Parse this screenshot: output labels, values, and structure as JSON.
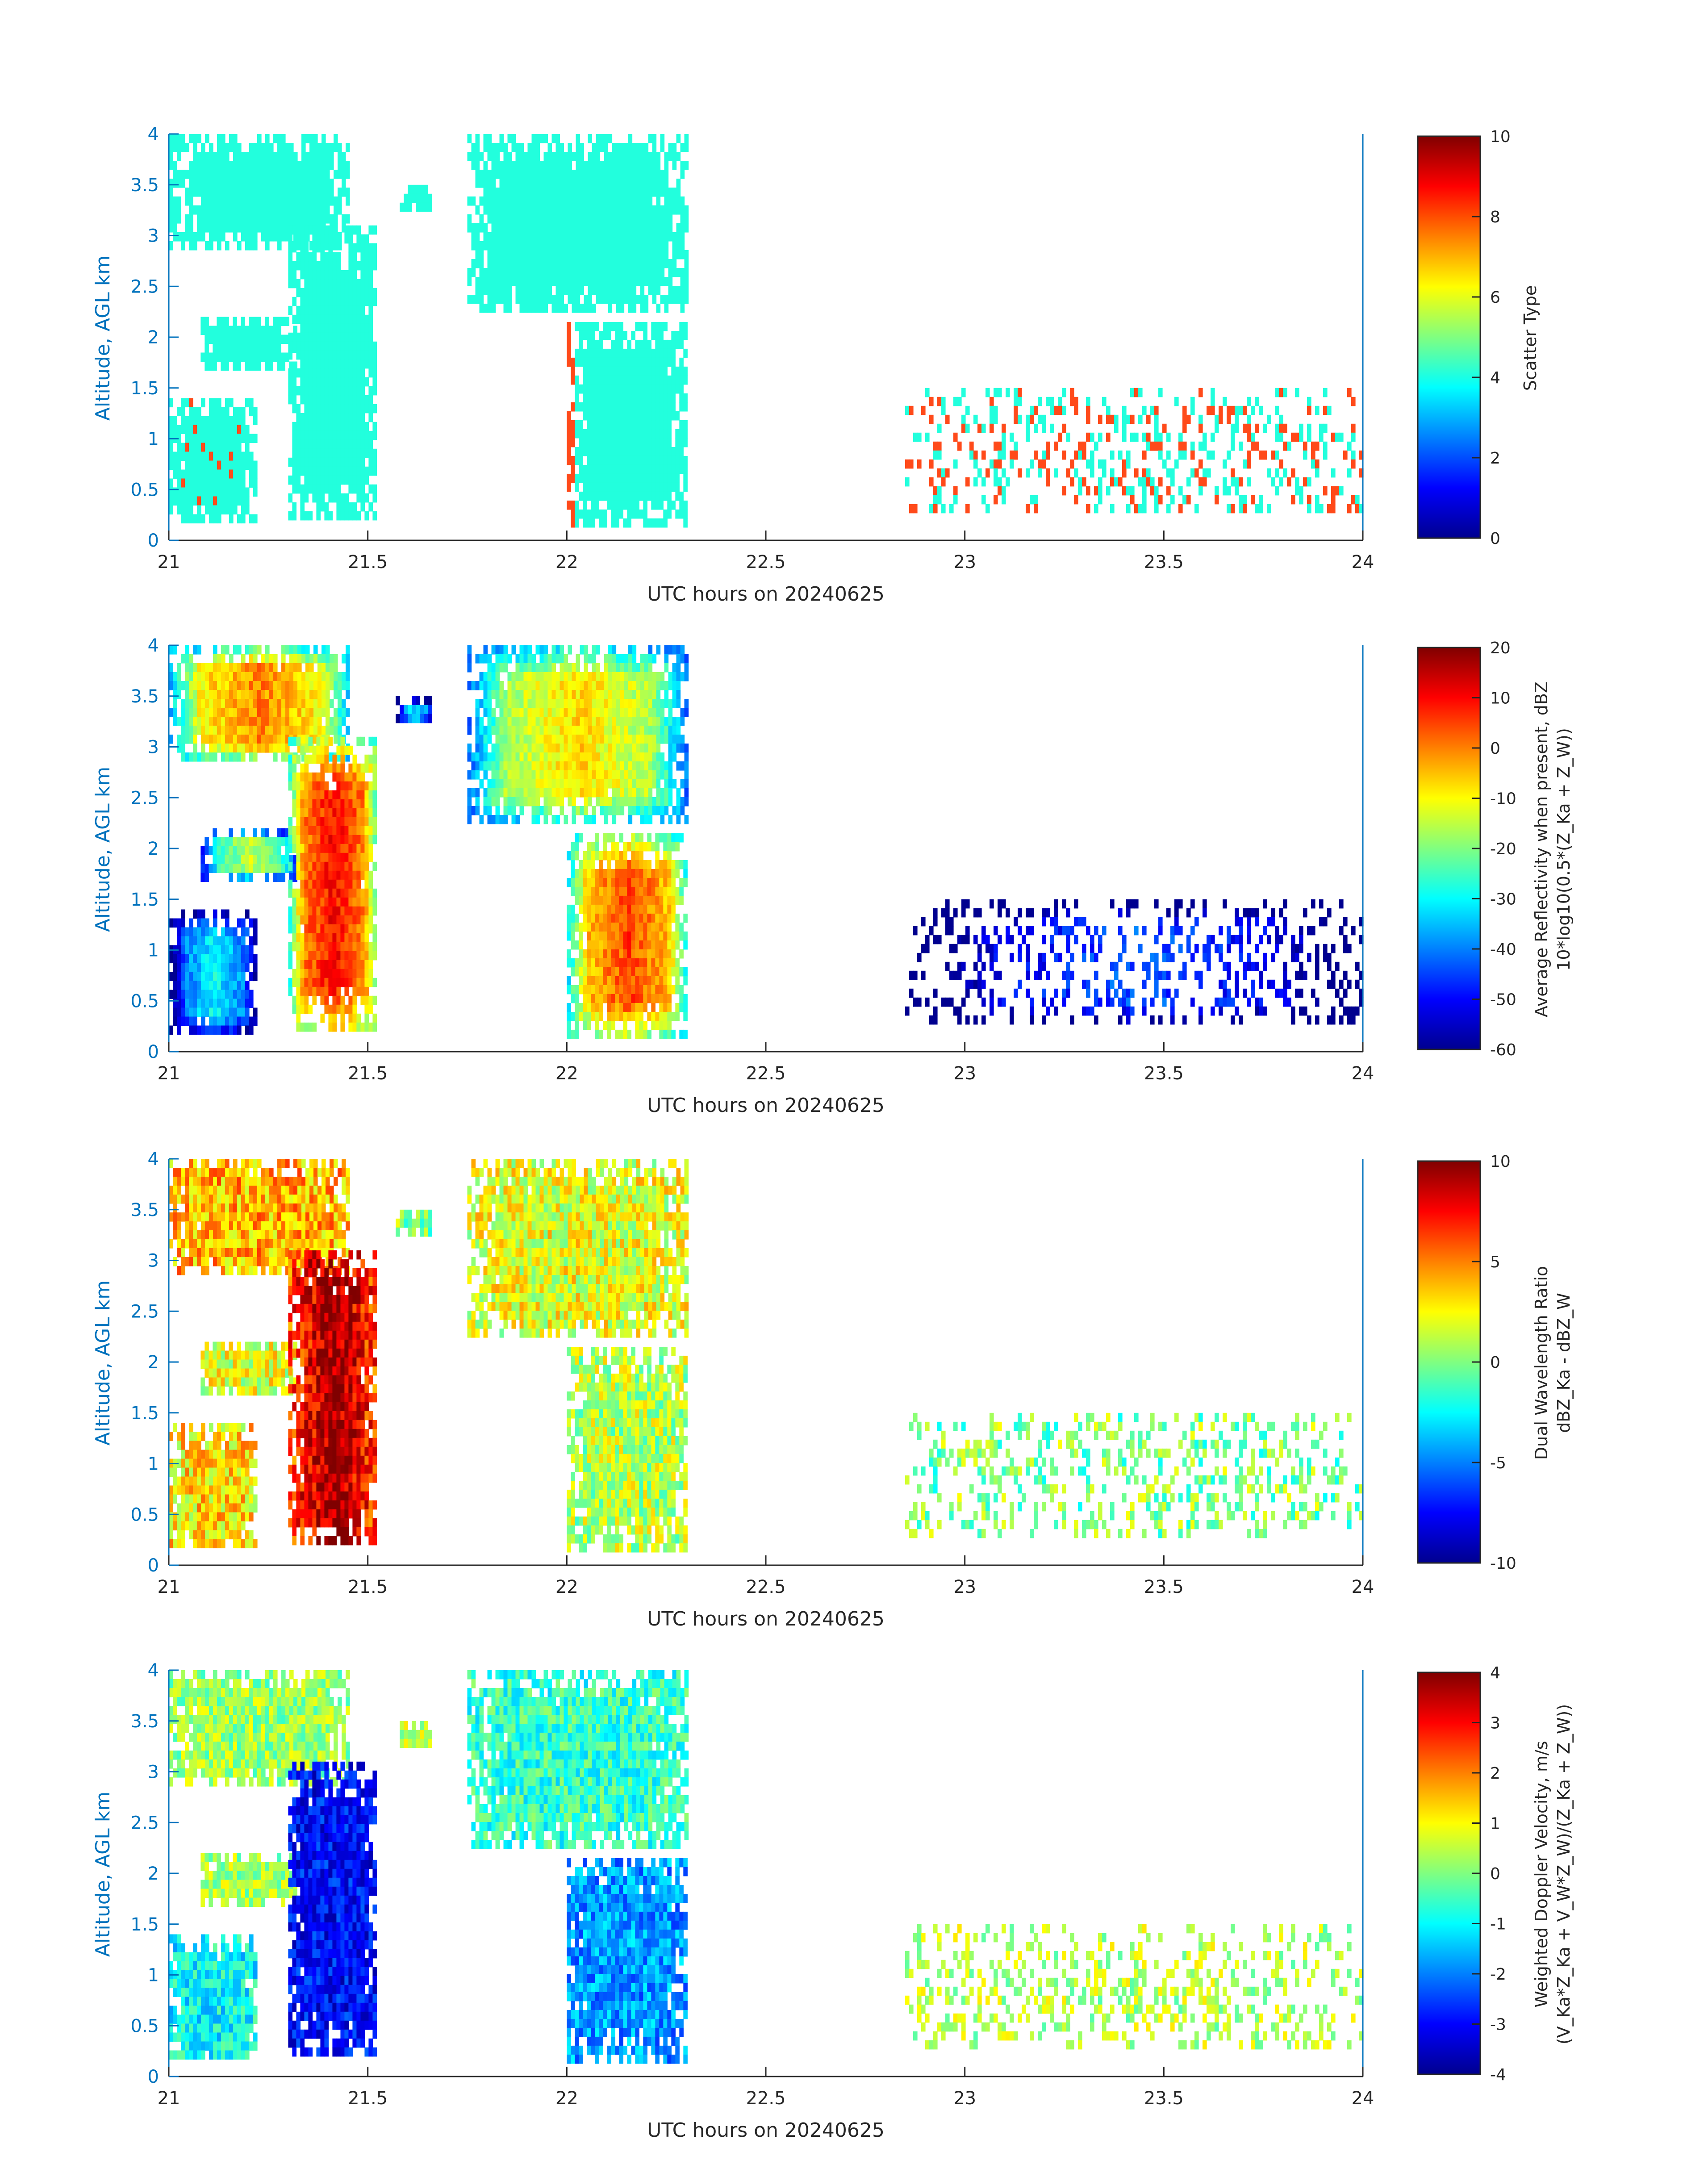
{
  "colors": {
    "axis_left": "#0072BD",
    "axis_text": "#262626",
    "scatter_cyan": "#22FFDD",
    "scatter_orange": "#FF4A1A",
    "jet": [
      "#00008F",
      "#0000FF",
      "#0080FF",
      "#00FFFF",
      "#80FF80",
      "#FFFF00",
      "#FF8000",
      "#FF0000",
      "#800000"
    ]
  },
  "chart_data": [
    {
      "type": "heatmap",
      "xlabel": "UTC hours on 20240625",
      "ylabel": "Altitude, AGL km",
      "xlim": [
        21,
        24
      ],
      "ylim": [
        0,
        4
      ],
      "xticks": [
        "21",
        "21.5",
        "22",
        "22.5",
        "23",
        "23.5",
        "24"
      ],
      "yticks": [
        "0",
        "0.5",
        "1",
        "1.5",
        "2",
        "2.5",
        "3",
        "3.5",
        "4"
      ],
      "colorbar": {
        "label_lines": [
          "Scatter Type"
        ],
        "ticks": [
          "0",
          "2",
          "4",
          "6",
          "8",
          "10"
        ],
        "range": [
          0,
          10
        ]
      },
      "field": "scatter"
    },
    {
      "type": "heatmap",
      "xlabel": "UTC hours on 20240625",
      "ylabel": "Altitude, AGL km",
      "xlim": [
        21,
        24
      ],
      "ylim": [
        0,
        4
      ],
      "xticks": [
        "21",
        "21.5",
        "22",
        "22.5",
        "23",
        "23.5",
        "24"
      ],
      "yticks": [
        "0",
        "0.5",
        "1",
        "1.5",
        "2",
        "2.5",
        "3",
        "3.5",
        "4"
      ],
      "colorbar": {
        "label_lines": [
          "Average Reflectivity when present, dBZ",
          "10*log10(0.5*(Z_Ka + Z_W))"
        ],
        "ticks": [
          "-60",
          "-50",
          "-40",
          "-30",
          "-20",
          "-10",
          "0",
          "10",
          "20"
        ],
        "range": [
          -60,
          20
        ]
      },
      "field": "reflectivity"
    },
    {
      "type": "heatmap",
      "xlabel": "UTC hours on 20240625",
      "ylabel": "Altitude, AGL km",
      "xlim": [
        21,
        24
      ],
      "ylim": [
        0,
        4
      ],
      "xticks": [
        "21",
        "21.5",
        "22",
        "22.5",
        "23",
        "23.5",
        "24"
      ],
      "yticks": [
        "0",
        "0.5",
        "1",
        "1.5",
        "2",
        "2.5",
        "3",
        "3.5",
        "4"
      ],
      "colorbar": {
        "label_lines": [
          "Dual Wavelength Ratio",
          "dBZ_Ka - dBZ_W"
        ],
        "ticks": [
          "-10",
          "-5",
          "0",
          "5",
          "10"
        ],
        "range": [
          -10,
          10
        ]
      },
      "field": "dwr"
    },
    {
      "type": "heatmap",
      "xlabel": "UTC hours on 20240625",
      "ylabel": "Altitude, AGL km",
      "xlim": [
        21,
        24
      ],
      "ylim": [
        0,
        4
      ],
      "xticks": [
        "21",
        "21.5",
        "22",
        "22.5",
        "23",
        "23.5",
        "24"
      ],
      "yticks": [
        "0",
        "0.5",
        "1",
        "1.5",
        "2",
        "2.5",
        "3",
        "3.5",
        "4"
      ],
      "colorbar": {
        "label_lines": [
          "Weighted Doppler Velocity, m/s",
          "(V_Ka*Z_Ka + V_W*Z_W)/(Z_Ka + Z_W))"
        ],
        "ticks": [
          "-4",
          "-3",
          "-2",
          "-1",
          "0",
          "1",
          "2",
          "3",
          "4"
        ],
        "range": [
          -4,
          4
        ]
      },
      "field": "velocity"
    }
  ],
  "regions": [
    {
      "name": "upper-cloud-a",
      "x0": 21.0,
      "x1": 21.45,
      "y0": 2.9,
      "y1": 4.0,
      "scatter": 4,
      "refl": -15,
      "dwr": 4,
      "vel": 0.2
    },
    {
      "name": "upper-cloud-b",
      "x0": 21.75,
      "x1": 22.3,
      "y0": 2.3,
      "y1": 4.0,
      "scatter": 4,
      "refl": -22,
      "dwr": 2,
      "vel": -0.6
    },
    {
      "name": "small-patch-3.4",
      "x0": 21.57,
      "x1": 21.66,
      "y0": 3.3,
      "y1": 3.5,
      "scatter": 4,
      "refl": -45,
      "dwr": 0,
      "vel": 0.5
    },
    {
      "name": "mid-layer-2km",
      "x0": 21.08,
      "x1": 21.32,
      "y0": 1.75,
      "y1": 2.2,
      "scatter": 4,
      "refl": -30,
      "dwr": 2,
      "vel": 0.3
    },
    {
      "name": "column-21.4",
      "x0": 21.3,
      "x1": 21.52,
      "y0": 0.2,
      "y1": 3.1,
      "scatter": 4,
      "refl": -5,
      "dwr": 6,
      "vel": -3.0
    },
    {
      "name": "column-22.1",
      "x0": 22.0,
      "x1": 22.3,
      "y0": 0.2,
      "y1": 2.15,
      "scatter": 4,
      "refl": -10,
      "dwr": 1,
      "vel": -1.8
    },
    {
      "name": "low-cells-left",
      "x0": 21.0,
      "x1": 21.22,
      "y0": 0.2,
      "y1": 1.4,
      "scatter": 4,
      "refl": -45,
      "dwr": 3,
      "vel": -1.0
    },
    {
      "name": "low-cells-right",
      "x0": 22.85,
      "x1": 24.0,
      "y0": 0.3,
      "y1": 1.5,
      "scatter": 8,
      "refl": -58,
      "dwr": 0,
      "vel": 0.4
    }
  ]
}
